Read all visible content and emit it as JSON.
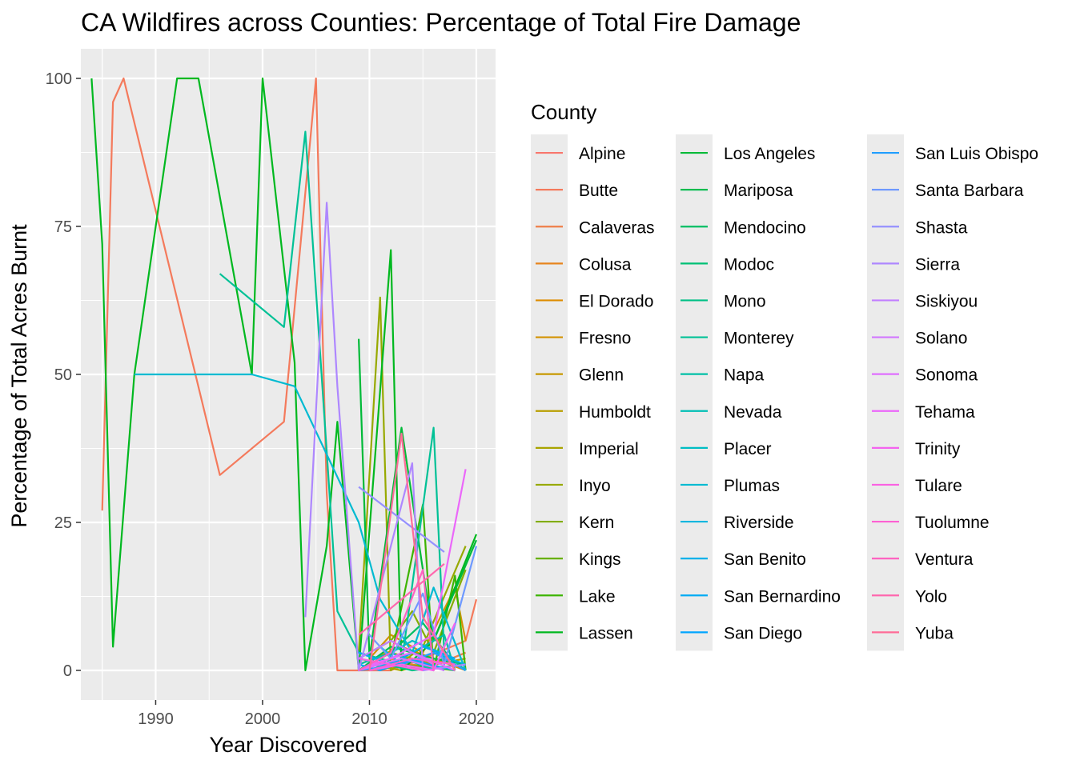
{
  "chart_data": {
    "type": "line",
    "title": "CA Wildfires across Counties: Percentage of Total Fire Damage",
    "xlabel": "Year Discovered",
    "ylabel": "Percentage of Total Acres Burnt",
    "xlim": [
      1983,
      2021.8
    ],
    "ylim": [
      -5,
      105
    ],
    "x_ticks": [
      1990,
      2000,
      2010,
      2020
    ],
    "y_ticks": [
      0,
      25,
      50,
      75,
      100
    ],
    "grid": true,
    "legend": {
      "title": "County",
      "position": "right",
      "columns": 3
    },
    "series": [
      {
        "name": "Alpine",
        "color": "#F8766D",
        "points": []
      },
      {
        "name": "Butte",
        "color": "#F47A5C",
        "points": [
          [
            1985,
            27
          ],
          [
            1986,
            96
          ],
          [
            1987,
            100
          ],
          [
            1996,
            33
          ],
          [
            2002,
            42
          ],
          [
            2005,
            100
          ],
          [
            2006,
            30
          ],
          [
            2007,
            0
          ],
          [
            2012,
            0
          ],
          [
            2015,
            2
          ],
          [
            2019,
            5
          ],
          [
            2020,
            12
          ]
        ]
      },
      {
        "name": "Calaveras",
        "color": "#EF7F49",
        "points": [
          [
            2009,
            0
          ],
          [
            2012,
            2
          ],
          [
            2015,
            0
          ],
          [
            2019,
            3
          ]
        ]
      },
      {
        "name": "Colusa",
        "color": "#E7851E",
        "points": [
          [
            2010,
            0
          ],
          [
            2014,
            1
          ],
          [
            2018,
            0
          ]
        ]
      },
      {
        "name": "El Dorado",
        "color": "#DE8C00",
        "points": [
          [
            2009,
            1
          ],
          [
            2013,
            4
          ],
          [
            2016,
            2
          ],
          [
            2019,
            0
          ]
        ]
      },
      {
        "name": "Fresno",
        "color": "#D39200",
        "points": [
          [
            2010,
            2
          ],
          [
            2012,
            6
          ],
          [
            2015,
            3
          ],
          [
            2018,
            14
          ],
          [
            2019,
            5
          ]
        ]
      },
      {
        "name": "Glenn",
        "color": "#C79800",
        "points": [
          [
            2011,
            0
          ],
          [
            2014,
            2
          ],
          [
            2017,
            0
          ]
        ]
      },
      {
        "name": "Humboldt",
        "color": "#B99E00",
        "points": [
          [
            2009,
            0
          ],
          [
            2012,
            3
          ],
          [
            2016,
            1
          ],
          [
            2019,
            2
          ]
        ]
      },
      {
        "name": "Imperial",
        "color": "#A9A400",
        "points": [
          [
            2010,
            1
          ],
          [
            2013,
            0
          ],
          [
            2017,
            2
          ]
        ]
      },
      {
        "name": "Inyo",
        "color": "#97A900",
        "points": [
          [
            2009,
            3
          ],
          [
            2011,
            63
          ],
          [
            2012,
            0
          ],
          [
            2015,
            4
          ],
          [
            2019,
            21
          ]
        ]
      },
      {
        "name": "Kern",
        "color": "#82AD00",
        "points": [
          [
            2009,
            2
          ],
          [
            2012,
            5
          ],
          [
            2014,
            10
          ],
          [
            2016,
            3
          ],
          [
            2019,
            17
          ]
        ]
      },
      {
        "name": "Kings",
        "color": "#68B100",
        "points": [
          [
            2010,
            0
          ],
          [
            2013,
            1
          ],
          [
            2018,
            0
          ]
        ]
      },
      {
        "name": "Lake",
        "color": "#3DB400",
        "points": [
          [
            2009,
            0
          ],
          [
            2012,
            2
          ],
          [
            2015,
            28
          ],
          [
            2016,
            0
          ],
          [
            2018,
            16
          ],
          [
            2019,
            0
          ]
        ]
      },
      {
        "name": "Lassen",
        "color": "#00B81F",
        "points": [
          [
            1984,
            100
          ],
          [
            1985,
            72
          ],
          [
            1986,
            4
          ],
          [
            1988,
            50
          ],
          [
            1992,
            100
          ],
          [
            1994,
            100
          ],
          [
            1999,
            50
          ],
          [
            2000,
            100
          ],
          [
            2003,
            52
          ],
          [
            2004,
            0
          ],
          [
            2006,
            21
          ],
          [
            2007,
            42
          ],
          [
            2009,
            0
          ],
          [
            2012,
            71
          ],
          [
            2013,
            0
          ],
          [
            2016,
            5
          ],
          [
            2020,
            23
          ]
        ]
      },
      {
        "name": "Los Angeles",
        "color": "#00BA38",
        "points": [
          [
            2009,
            56
          ],
          [
            2010,
            2
          ],
          [
            2011,
            15
          ],
          [
            2013,
            41
          ],
          [
            2016,
            5
          ],
          [
            2020,
            22
          ]
        ]
      },
      {
        "name": "Mariposa",
        "color": "#00BC4F",
        "points": [
          [
            2009,
            0
          ],
          [
            2012,
            4
          ],
          [
            2016,
            2
          ],
          [
            2019,
            1
          ]
        ]
      },
      {
        "name": "Mendocino",
        "color": "#00BE63",
        "points": [
          [
            2009,
            0
          ],
          [
            2012,
            3
          ],
          [
            2015,
            8
          ],
          [
            2018,
            1
          ]
        ]
      },
      {
        "name": "Modoc",
        "color": "#00C075",
        "points": [
          [
            2010,
            1
          ],
          [
            2013,
            4
          ],
          [
            2017,
            0
          ]
        ]
      },
      {
        "name": "Mono",
        "color": "#00C086",
        "points": [
          [
            2009,
            2
          ],
          [
            2014,
            0
          ],
          [
            2019,
            1
          ]
        ]
      },
      {
        "name": "Monterey",
        "color": "#00C196",
        "points": [
          [
            1996,
            67
          ],
          [
            2002,
            58
          ],
          [
            2004,
            91
          ],
          [
            2007,
            10
          ],
          [
            2009,
            3
          ],
          [
            2013,
            1
          ],
          [
            2016,
            41
          ],
          [
            2017,
            3
          ],
          [
            2019,
            0
          ]
        ]
      },
      {
        "name": "Napa",
        "color": "#00C0A6",
        "points": [
          [
            2010,
            0
          ],
          [
            2013,
            2
          ],
          [
            2017,
            6
          ],
          [
            2018,
            0
          ]
        ]
      },
      {
        "name": "Nevada",
        "color": "#00BFB5",
        "points": [
          [
            2009,
            1
          ],
          [
            2012,
            3
          ],
          [
            2016,
            0
          ]
        ]
      },
      {
        "name": "Placer",
        "color": "#00BDC4",
        "points": [
          [
            2009,
            0
          ],
          [
            2011,
            2
          ],
          [
            2014,
            5
          ],
          [
            2018,
            2
          ]
        ]
      },
      {
        "name": "Plumas",
        "color": "#00BAD1",
        "points": [
          [
            1988,
            50
          ],
          [
            1999,
            50
          ],
          [
            2003,
            48
          ],
          [
            2009,
            25
          ],
          [
            2011,
            12
          ],
          [
            2014,
            3
          ],
          [
            2016,
            14
          ],
          [
            2019,
            0
          ]
        ]
      },
      {
        "name": "Riverside",
        "color": "#00B6DE",
        "points": [
          [
            2009,
            2
          ],
          [
            2011,
            4
          ],
          [
            2013,
            1
          ],
          [
            2016,
            3
          ],
          [
            2019,
            1
          ]
        ]
      },
      {
        "name": "San Benito",
        "color": "#00B1EA",
        "points": [
          [
            2010,
            0
          ],
          [
            2013,
            2
          ],
          [
            2018,
            0
          ]
        ]
      },
      {
        "name": "San Bernardino",
        "color": "#00ABF4",
        "points": [
          [
            2009,
            3
          ],
          [
            2012,
            1
          ],
          [
            2015,
            4
          ],
          [
            2018,
            2
          ]
        ]
      },
      {
        "name": "San Diego",
        "color": "#00A5FF",
        "points": [
          [
            2009,
            1
          ],
          [
            2011,
            0
          ],
          [
            2014,
            2
          ],
          [
            2017,
            0
          ]
        ]
      },
      {
        "name": "San Luis Obispo",
        "color": "#219EFF",
        "points": [
          [
            2009,
            0
          ],
          [
            2013,
            1
          ],
          [
            2016,
            3
          ],
          [
            2019,
            0
          ]
        ]
      },
      {
        "name": "Santa Barbara",
        "color": "#6E99FF",
        "points": [
          [
            2010,
            6
          ],
          [
            2012,
            2
          ],
          [
            2015,
            13
          ],
          [
            2017,
            1
          ],
          [
            2020,
            21
          ]
        ]
      },
      {
        "name": "Shasta",
        "color": "#9590FF",
        "points": [
          [
            2009,
            31
          ],
          [
            2017,
            20
          ]
        ]
      },
      {
        "name": "Sierra",
        "color": "#AE87FF",
        "points": [
          [
            2004,
            9
          ],
          [
            2006,
            79
          ],
          [
            2007,
            48
          ],
          [
            2009,
            0
          ],
          [
            2014,
            35
          ],
          [
            2015,
            0
          ],
          [
            2019,
            1
          ]
        ]
      },
      {
        "name": "Siskiyou",
        "color": "#C27FFF",
        "points": [
          [
            2009,
            2
          ],
          [
            2012,
            5
          ],
          [
            2016,
            1
          ]
        ]
      },
      {
        "name": "Solano",
        "color": "#D277FF",
        "points": [
          [
            2009,
            0
          ],
          [
            2013,
            2
          ],
          [
            2017,
            0
          ]
        ]
      },
      {
        "name": "Sonoma",
        "color": "#E06FFF",
        "points": [
          [
            2010,
            1
          ],
          [
            2014,
            3
          ],
          [
            2018,
            0
          ]
        ]
      },
      {
        "name": "Tehama",
        "color": "#EB67FA",
        "points": [
          [
            2009,
            0
          ],
          [
            2012,
            2
          ],
          [
            2016,
            6
          ],
          [
            2019,
            34
          ]
        ]
      },
      {
        "name": "Trinity",
        "color": "#F464EF",
        "points": [
          [
            2010,
            0
          ],
          [
            2013,
            1
          ],
          [
            2016,
            0
          ],
          [
            2018,
            8
          ]
        ]
      },
      {
        "name": "Tulare",
        "color": "#FA62E2",
        "points": [
          [
            2009,
            2
          ],
          [
            2012,
            1
          ],
          [
            2015,
            0
          ]
        ]
      },
      {
        "name": "Tuolumne",
        "color": "#FE61D3",
        "points": [
          [
            2010,
            0
          ],
          [
            2014,
            2
          ],
          [
            2018,
            1
          ]
        ]
      },
      {
        "name": "Ventura",
        "color": "#FF63C1",
        "points": [
          [
            2009,
            0
          ],
          [
            2012,
            3
          ],
          [
            2015,
            17
          ],
          [
            2016,
            0
          ]
        ]
      },
      {
        "name": "Yolo",
        "color": "#FF67AE",
        "points": [
          [
            2009,
            6
          ],
          [
            2013,
            12
          ],
          [
            2017,
            18
          ]
        ]
      },
      {
        "name": "Yuba",
        "color": "#FF6C98",
        "points": [
          [
            2010,
            0
          ],
          [
            2013,
            40
          ],
          [
            2015,
            9
          ],
          [
            2018,
            0
          ]
        ]
      }
    ]
  }
}
